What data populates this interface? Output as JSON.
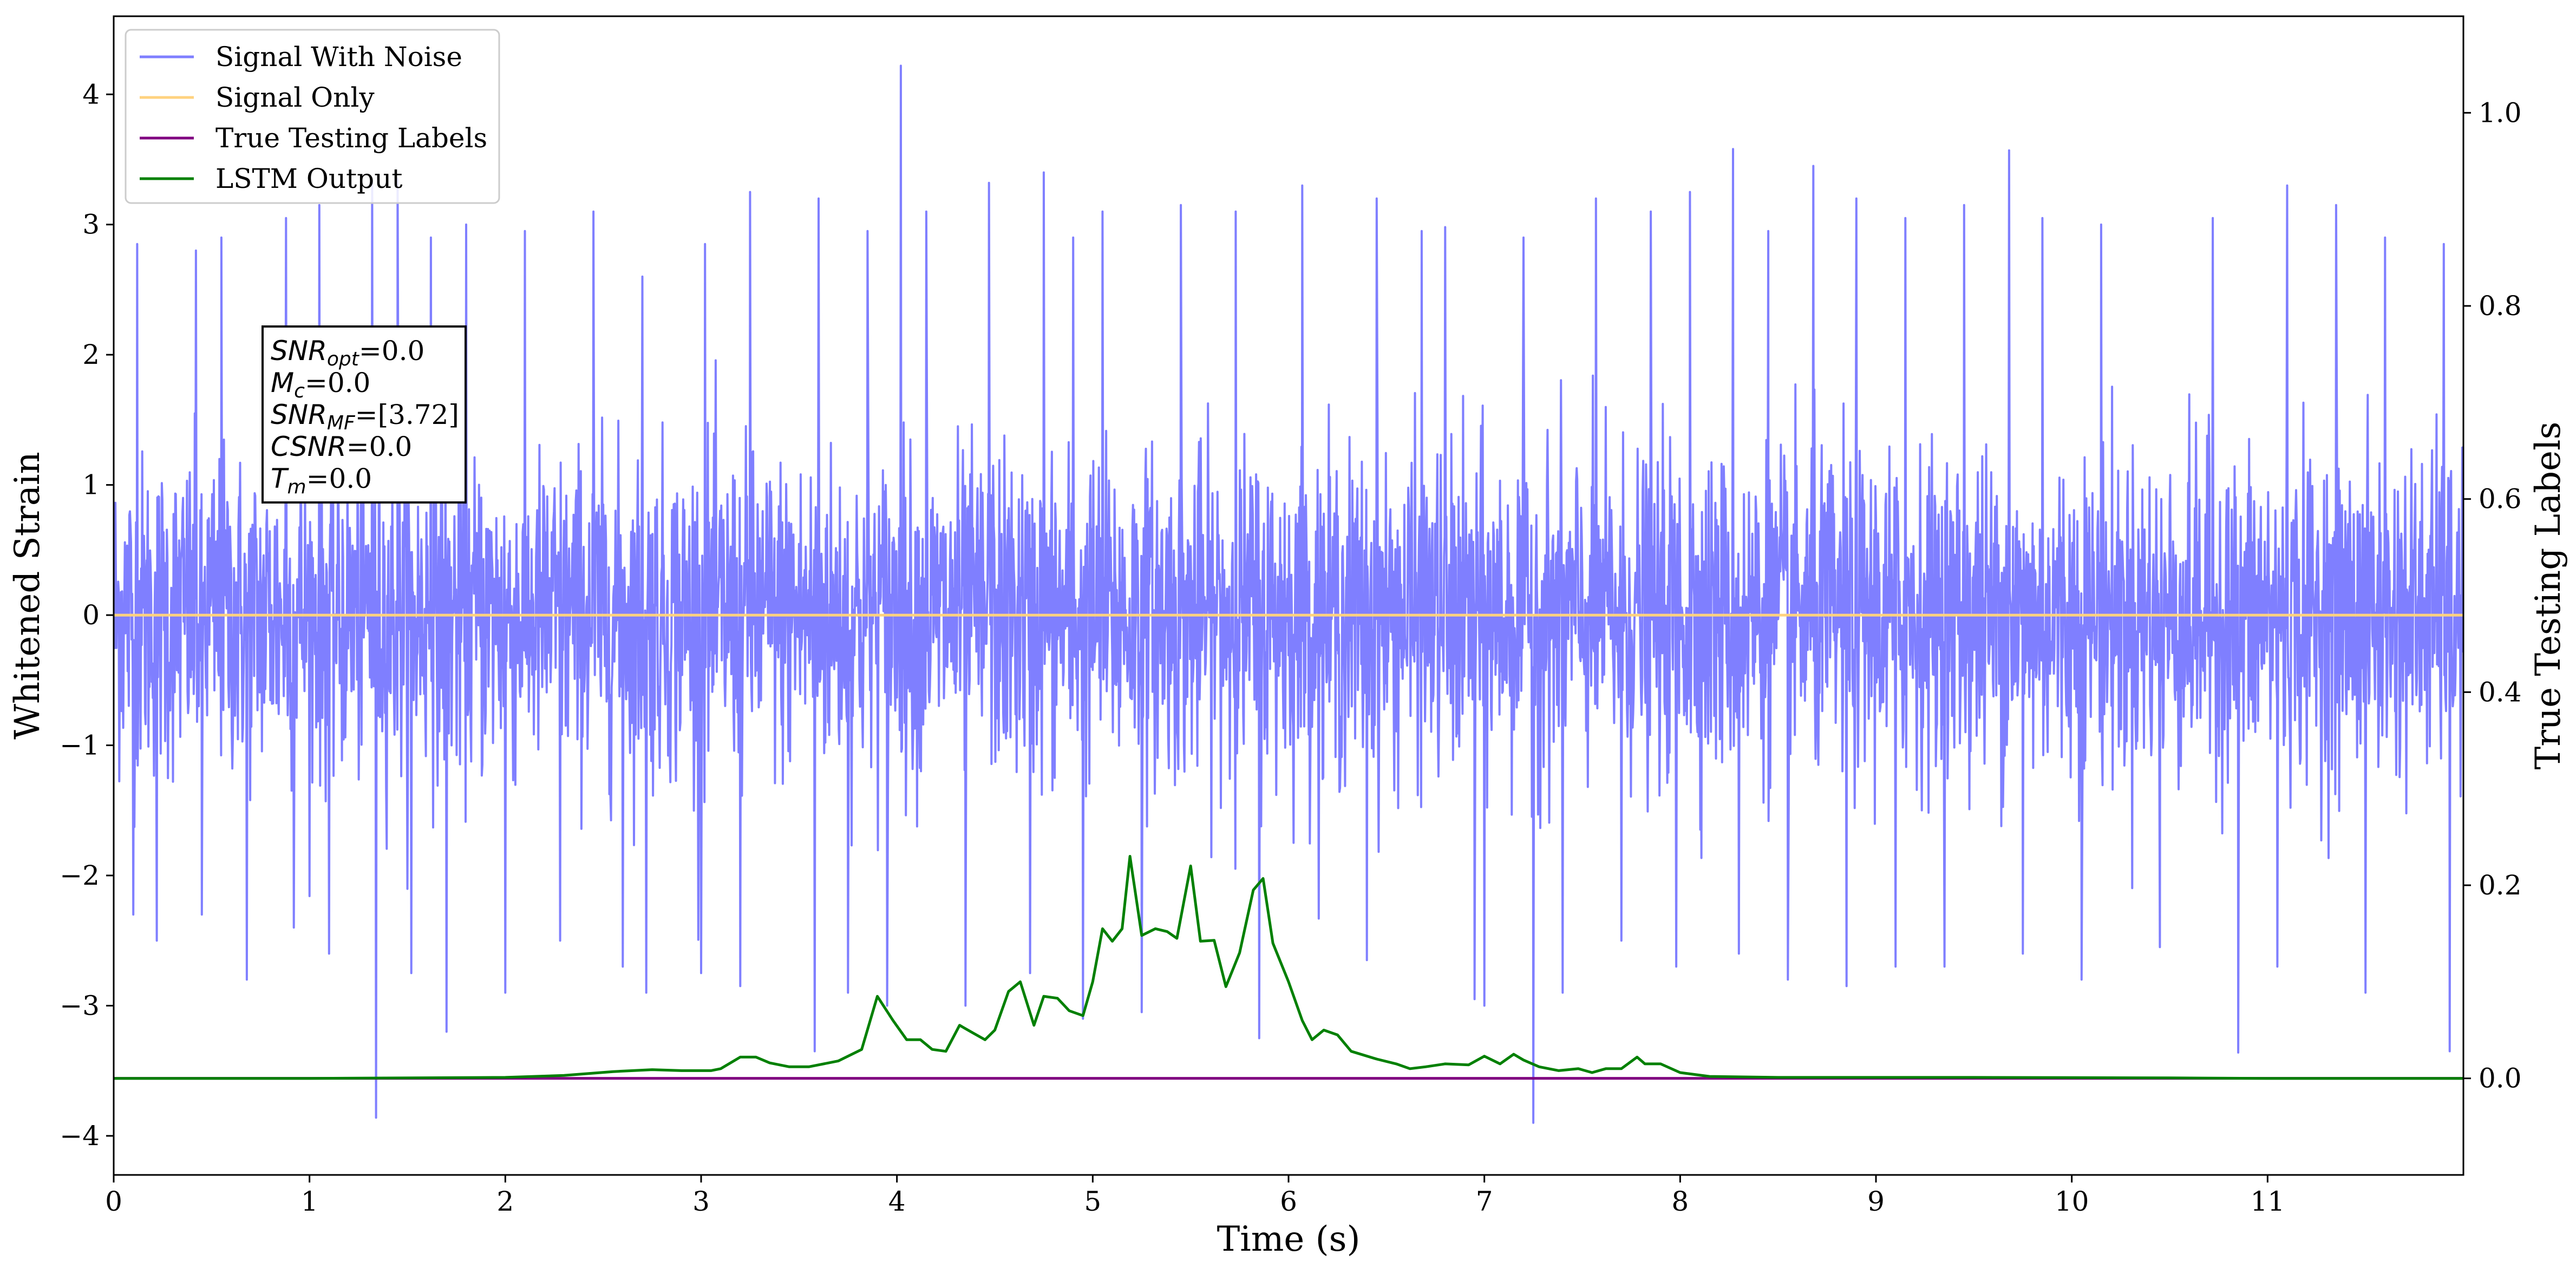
{
  "chart_data": {
    "type": "line",
    "xlabel": "Time (s)",
    "ylabel": "Whitened Strain",
    "ylabel_right": "True Testing Labels",
    "xlim": [
      0,
      12.0
    ],
    "ylim": [
      -4.3,
      4.6
    ],
    "ylim_right": [
      -0.1,
      1.1
    ],
    "x_ticks": [
      0,
      1,
      2,
      3,
      4,
      5,
      6,
      7,
      8,
      9,
      10,
      11
    ],
    "y_ticks": [
      -4,
      -3,
      -2,
      -1,
      0,
      1,
      2,
      3,
      4
    ],
    "y_ticks_right": [
      0.0,
      0.2,
      0.4,
      0.6,
      0.8,
      1.0
    ],
    "x_tick_labels": [
      "0",
      "1",
      "2",
      "3",
      "4",
      "5",
      "6",
      "7",
      "8",
      "9",
      "10",
      "11"
    ],
    "y_tick_labels": [
      "−4",
      "−3",
      "−2",
      "−1",
      "0",
      "1",
      "2",
      "3",
      "4"
    ],
    "y_tick_labels_right": [
      "0.0",
      "0.2",
      "0.4",
      "0.6",
      "0.8",
      "1.0"
    ],
    "legend_position": "upper-left",
    "grid": false,
    "series": [
      {
        "name": "Signal With Noise",
        "color": "#7f7fff",
        "axis": "left",
        "noise_std": 0.62,
        "extremes": [
          [
            0.12,
            2.85
          ],
          [
            0.42,
            2.8
          ],
          [
            0.55,
            2.9
          ],
          [
            0.88,
            3.05
          ],
          [
            1.05,
            3.15
          ],
          [
            1.32,
            3.32
          ],
          [
            1.45,
            3.35
          ],
          [
            1.62,
            2.9
          ],
          [
            1.8,
            3.0
          ],
          [
            2.1,
            2.95
          ],
          [
            2.45,
            3.1
          ],
          [
            2.7,
            2.6
          ],
          [
            3.02,
            2.85
          ],
          [
            3.25,
            3.25
          ],
          [
            3.6,
            3.2
          ],
          [
            3.85,
            2.95
          ],
          [
            4.02,
            4.22
          ],
          [
            4.15,
            3.1
          ],
          [
            4.47,
            3.32
          ],
          [
            4.75,
            3.4
          ],
          [
            4.9,
            2.9
          ],
          [
            5.05,
            3.1
          ],
          [
            5.45,
            3.15
          ],
          [
            5.73,
            3.1
          ],
          [
            6.07,
            3.3
          ],
          [
            6.45,
            3.2
          ],
          [
            6.68,
            2.95
          ],
          [
            6.8,
            2.98
          ],
          [
            7.2,
            2.9
          ],
          [
            7.57,
            3.2
          ],
          [
            7.85,
            3.1
          ],
          [
            8.05,
            3.25
          ],
          [
            8.27,
            3.58
          ],
          [
            8.45,
            2.95
          ],
          [
            8.68,
            3.45
          ],
          [
            8.9,
            3.2
          ],
          [
            9.15,
            3.05
          ],
          [
            9.45,
            3.15
          ],
          [
            9.68,
            3.57
          ],
          [
            9.85,
            3.05
          ],
          [
            10.15,
            3.0
          ],
          [
            10.45,
            3.0
          ],
          [
            10.72,
            3.05
          ],
          [
            11.1,
            3.3
          ],
          [
            11.35,
            3.15
          ],
          [
            11.6,
            2.9
          ],
          [
            11.9,
            2.85
          ],
          [
            0.1,
            -2.3
          ],
          [
            0.22,
            -2.5
          ],
          [
            0.45,
            -2.3
          ],
          [
            0.68,
            -2.8
          ],
          [
            0.92,
            -2.4
          ],
          [
            1.1,
            -2.6
          ],
          [
            1.34,
            -3.86
          ],
          [
            1.52,
            -2.75
          ],
          [
            1.7,
            -3.2
          ],
          [
            2.0,
            -2.9
          ],
          [
            2.28,
            -2.5
          ],
          [
            2.6,
            -2.7
          ],
          [
            2.72,
            -2.9
          ],
          [
            3.0,
            -2.75
          ],
          [
            3.2,
            -2.85
          ],
          [
            3.58,
            -3.35
          ],
          [
            3.75,
            -2.9
          ],
          [
            3.95,
            -3.0
          ],
          [
            4.35,
            -3.0
          ],
          [
            4.68,
            -2.75
          ],
          [
            4.95,
            -3.1
          ],
          [
            5.25,
            -3.05
          ],
          [
            5.85,
            -3.25
          ],
          [
            6.4,
            -2.65
          ],
          [
            6.95,
            -2.95
          ],
          [
            7.0,
            -3.0
          ],
          [
            7.25,
            -3.9
          ],
          [
            7.4,
            -2.9
          ],
          [
            7.7,
            -2.5
          ],
          [
            7.98,
            -2.7
          ],
          [
            8.3,
            -2.6
          ],
          [
            8.55,
            -2.8
          ],
          [
            8.85,
            -2.85
          ],
          [
            9.1,
            -2.7
          ],
          [
            9.35,
            -2.7
          ],
          [
            9.75,
            -2.6
          ],
          [
            10.05,
            -2.8
          ],
          [
            10.45,
            -2.55
          ],
          [
            10.85,
            -3.36
          ],
          [
            11.05,
            -2.7
          ],
          [
            11.5,
            -2.9
          ],
          [
            11.93,
            -3.35
          ]
        ]
      },
      {
        "name": "Signal Only",
        "color": "#ffd27f",
        "axis": "left",
        "constant": 0.0
      },
      {
        "name": "True Testing Labels",
        "color": "#800080",
        "axis": "right",
        "constant": 0.0
      },
      {
        "name": "LSTM Output",
        "color": "#008000",
        "axis": "right",
        "x": [
          0,
          1.0,
          2.0,
          2.3,
          2.55,
          2.75,
          2.9,
          3.05,
          3.1,
          3.2,
          3.28,
          3.35,
          3.45,
          3.55,
          3.7,
          3.82,
          3.9,
          3.98,
          4.05,
          4.12,
          4.18,
          4.25,
          4.32,
          4.38,
          4.45,
          4.5,
          4.57,
          4.63,
          4.7,
          4.75,
          4.82,
          4.88,
          4.95,
          5.0,
          5.05,
          5.1,
          5.15,
          5.19,
          5.25,
          5.32,
          5.38,
          5.43,
          5.5,
          5.55,
          5.62,
          5.68,
          5.75,
          5.82,
          5.87,
          5.92,
          6.0,
          6.07,
          6.12,
          6.18,
          6.25,
          6.32,
          6.45,
          6.55,
          6.62,
          6.7,
          6.8,
          6.92,
          7.0,
          7.08,
          7.15,
          7.2,
          7.28,
          7.38,
          7.48,
          7.55,
          7.62,
          7.7,
          7.78,
          7.82,
          7.9,
          8.0,
          8.15,
          8.5,
          9.5,
          10.5,
          11.0,
          12.0
        ],
        "y": [
          0.0,
          0.0,
          0.001,
          0.003,
          0.007,
          0.009,
          0.008,
          0.008,
          0.01,
          0.022,
          0.022,
          0.016,
          0.012,
          0.012,
          0.018,
          0.03,
          0.085,
          0.06,
          0.04,
          0.04,
          0.03,
          0.028,
          0.055,
          0.048,
          0.04,
          0.05,
          0.09,
          0.1,
          0.055,
          0.085,
          0.083,
          0.07,
          0.065,
          0.1,
          0.155,
          0.142,
          0.155,
          0.23,
          0.148,
          0.155,
          0.152,
          0.145,
          0.22,
          0.142,
          0.143,
          0.095,
          0.13,
          0.195,
          0.207,
          0.14,
          0.1,
          0.06,
          0.04,
          0.05,
          0.045,
          0.028,
          0.02,
          0.015,
          0.01,
          0.012,
          0.015,
          0.014,
          0.023,
          0.015,
          0.025,
          0.019,
          0.012,
          0.008,
          0.01,
          0.006,
          0.01,
          0.01,
          0.022,
          0.015,
          0.015,
          0.006,
          0.002,
          0.001,
          0.001,
          0.0005,
          0.0,
          0.0
        ]
      }
    ],
    "annotation_lines": [
      {
        "label": "SNR",
        "sub": "opt",
        "value": "=0.0"
      },
      {
        "label": "M",
        "sub": "c",
        "value": "=0.0"
      },
      {
        "label": "SNR",
        "sub": "MF",
        "value": "=[3.72]"
      },
      {
        "label": "CSNR",
        "sub": "",
        "value": "=0.0"
      },
      {
        "label": "T",
        "sub": "m",
        "value": "=0.0"
      }
    ]
  }
}
